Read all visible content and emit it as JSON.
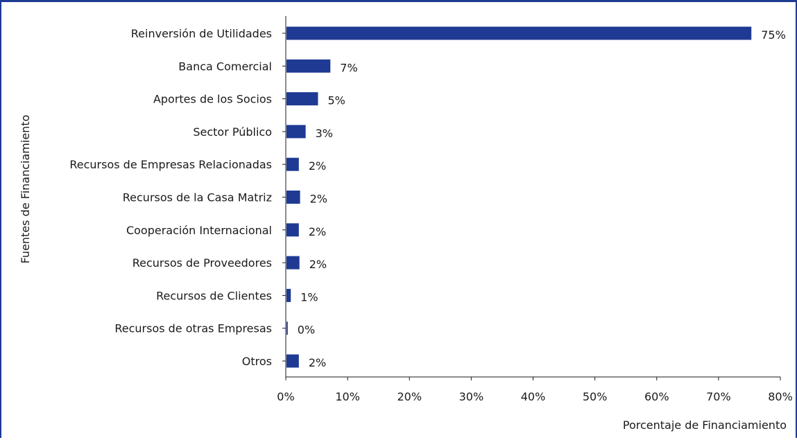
{
  "chart_data": {
    "type": "bar",
    "orientation": "horizontal",
    "categories": [
      "Reinversión de Utilidades",
      "Banca Comercial",
      "Aportes de los Socios",
      "Sector Público",
      "Recursos de Empresas Relacionadas",
      "Recursos de la Casa Matriz",
      "Cooperación Internacional",
      "Recursos de Proveedores",
      "Recursos de Clientes",
      "Recursos de otras Empresas ",
      "Otros"
    ],
    "values": [
      75.2,
      7.1,
      5.1,
      3.1,
      2.0,
      2.2,
      2.0,
      2.1,
      0.7,
      0.2,
      2.0
    ],
    "value_labels": [
      "75%",
      "7%",
      "5%",
      "3%",
      "2%",
      "2%",
      "2%",
      "2%",
      "1%",
      "0%",
      "2%"
    ],
    "xlabel": "Porcentaje de Financiamiento",
    "ylabel": "Fuentes de Financiamiento",
    "xlim": [
      0,
      80
    ],
    "x_ticks": [
      "0%",
      "10%",
      "20%",
      "30%",
      "40%",
      "50%",
      "60%",
      "70%",
      "80%"
    ],
    "grid": false,
    "legend": "none",
    "bar_color": "#1f3a93",
    "frame_color": "#1f3a93"
  }
}
